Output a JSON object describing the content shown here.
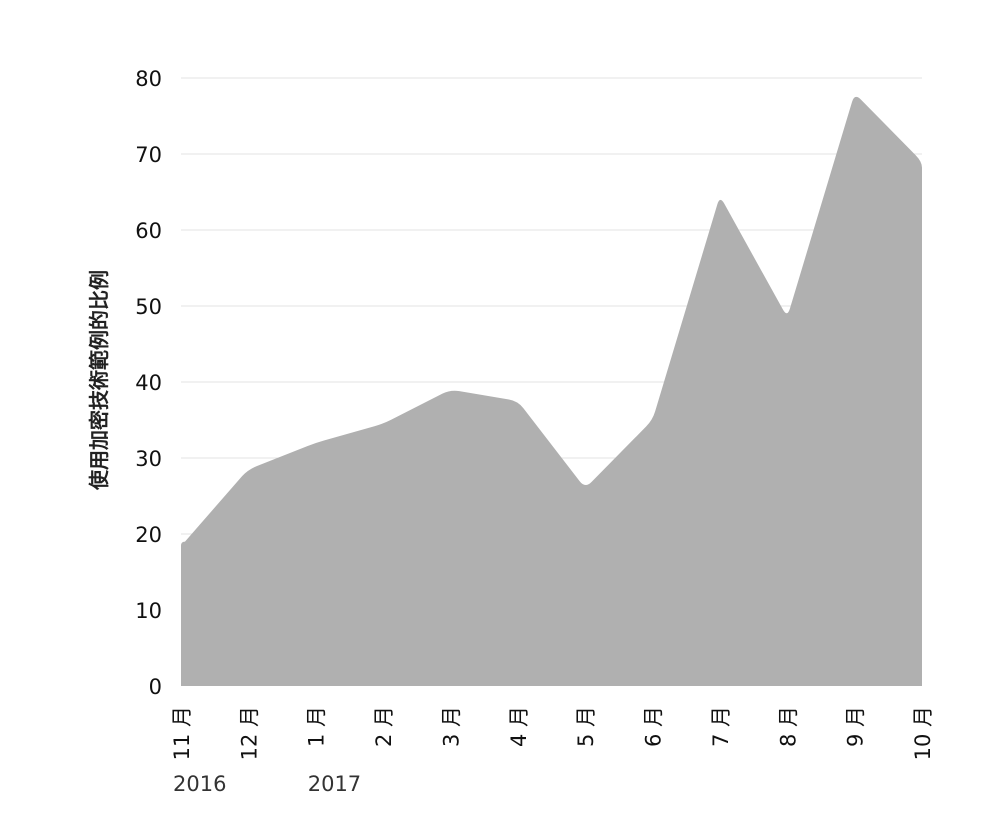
{
  "chart_data": {
    "type": "area",
    "title": "",
    "xlabel": "",
    "ylabel": "使用加密技術範例的比例",
    "categories": [
      "11 月",
      "12 月",
      "1 月",
      "2 月",
      "3 月",
      "4 月",
      "5 月",
      "6 月",
      "7 月",
      "8 月",
      "9 月",
      "10 月"
    ],
    "year_labels": [
      {
        "category_index": 0,
        "text": "2016"
      },
      {
        "category_index": 2,
        "text": "2017"
      }
    ],
    "values": [
      19,
      28.5,
      32,
      34.5,
      39,
      37.5,
      26,
      35,
      64.5,
      48.5,
      78,
      69
    ],
    "ylim": [
      0,
      80
    ],
    "yticks": [
      0,
      10,
      20,
      30,
      40,
      50,
      60,
      70,
      80
    ],
    "grid": true,
    "colors": {
      "area_fill": "#b0b0b0",
      "gridline": "#e3e3e3",
      "text": "#111111"
    }
  }
}
